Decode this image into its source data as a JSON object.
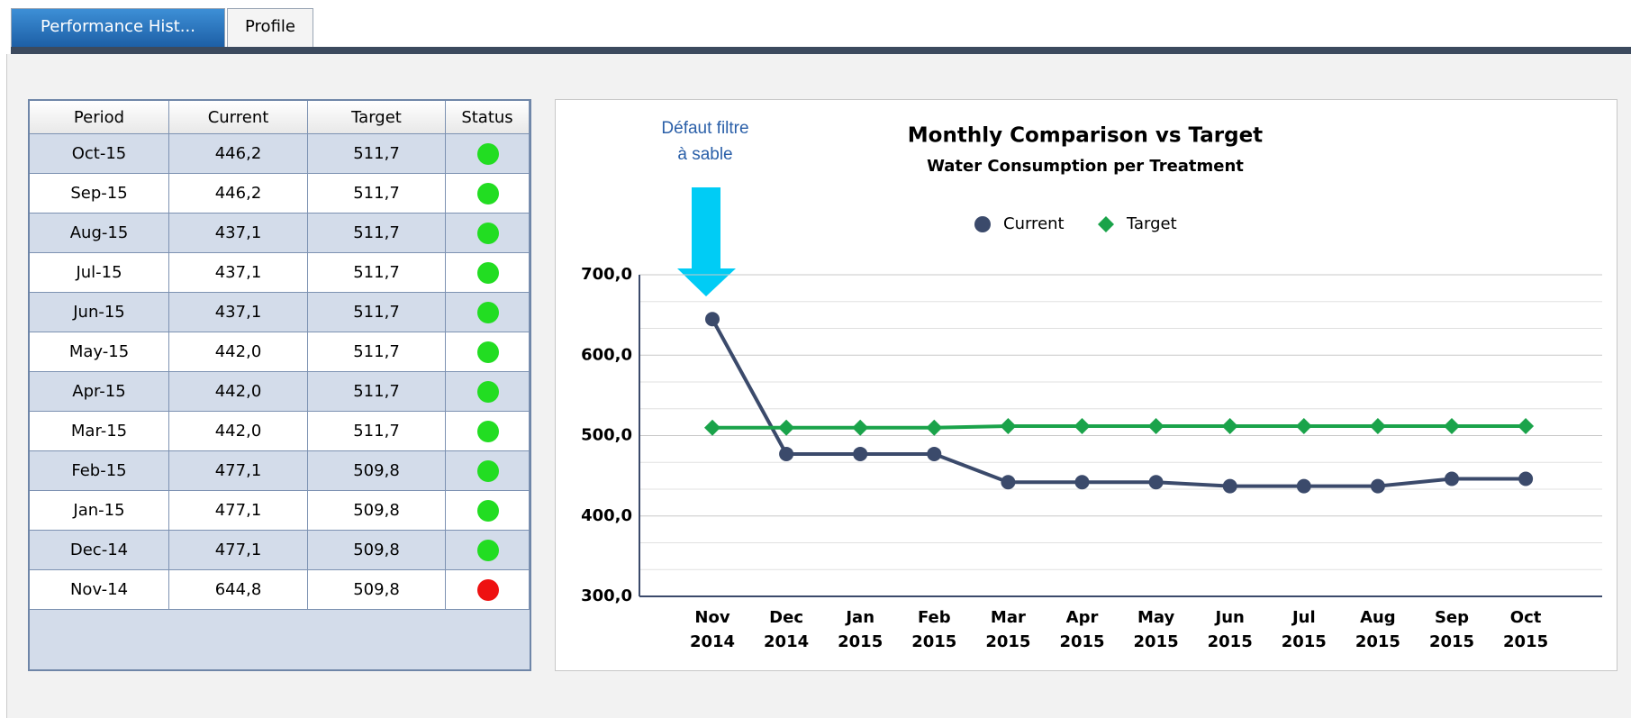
{
  "tabs": [
    "Performance Hist...",
    "Profile"
  ],
  "table": {
    "columns": [
      "Period",
      "Current",
      "Target",
      "Status"
    ],
    "rows": [
      [
        "Oct-15",
        "446,2",
        "511,7"
      ],
      [
        "Sep-15",
        "446,2",
        "511,7"
      ],
      [
        "Aug-15",
        "437,1",
        "511,7"
      ],
      [
        "Jul-15",
        "437,1",
        "511,7"
      ],
      [
        "Jun-15",
        "437,1",
        "511,7"
      ],
      [
        "May-15",
        "442,0",
        "511,7"
      ],
      [
        "Apr-15",
        "442,0",
        "511,7"
      ],
      [
        "Mar-15",
        "442,0",
        "511,7"
      ],
      [
        "Feb-15",
        "477,1",
        "509,8"
      ],
      [
        "Jan-15",
        "477,1",
        "509,8"
      ],
      [
        "Dec-14",
        "477,1",
        "509,8"
      ],
      [
        "Nov-14",
        "644,8",
        "509,8"
      ]
    ],
    "status_colors": [
      "#22dd22",
      "#22dd22",
      "#22dd22",
      "#22dd22",
      "#22dd22",
      "#22dd22",
      "#22dd22",
      "#22dd22",
      "#22dd22",
      "#22dd22",
      "#22dd22",
      "#ee1111"
    ]
  },
  "chart_data": {
    "type": "line",
    "title": "Monthly Comparison vs Target",
    "subtitle": "Water Consumption per Treatment",
    "annotation": [
      "Défaut filtre",
      "à sable"
    ],
    "categories": [
      "Nov 2014",
      "Dec 2014",
      "Jan 2015",
      "Feb 2015",
      "Mar 2015",
      "Apr 2015",
      "May 2015",
      "Jun 2015",
      "Jul 2015",
      "Aug 2015",
      "Sep 2015",
      "Oct 2015"
    ],
    "series": [
      {
        "name": "Current",
        "color": "#3b4a6b",
        "marker": "circle",
        "values": [
          644.8,
          477.1,
          477.1,
          477.1,
          442.0,
          442.0,
          442.0,
          437.1,
          437.1,
          437.1,
          446.2,
          446.2
        ]
      },
      {
        "name": "Target",
        "color": "#1aa34a",
        "marker": "diamond",
        "values": [
          509.8,
          509.8,
          509.8,
          509.8,
          511.7,
          511.7,
          511.7,
          511.7,
          511.7,
          511.7,
          511.7,
          511.7
        ]
      }
    ],
    "ylim": [
      300,
      700
    ],
    "yticks": [
      {
        "value": 300,
        "label": "300,0"
      },
      {
        "value": 400,
        "label": "400,0"
      },
      {
        "value": 500,
        "label": "500,0"
      },
      {
        "value": 600,
        "label": "600,0"
      },
      {
        "value": 700,
        "label": "700,0"
      }
    ],
    "grid": true
  }
}
